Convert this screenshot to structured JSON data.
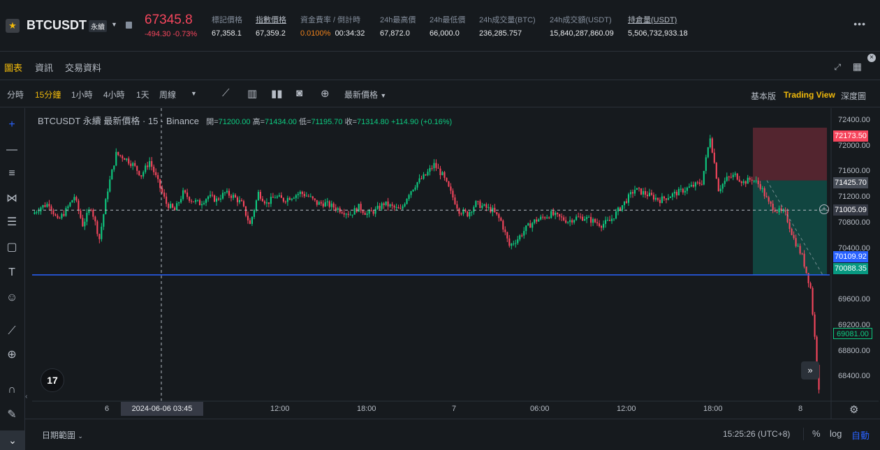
{
  "ticker": {
    "symbol": "BTCUSDT",
    "contract_type": "永續",
    "last_price": "67345.8",
    "change": "-494.30 -0.73%",
    "stats": [
      {
        "label": "標記價格",
        "value": "67,358.1",
        "underline": false
      },
      {
        "label": "指數價格",
        "value": "67,359.2",
        "underline": true
      },
      {
        "label": "24h最高價",
        "value": "67,872.0",
        "underline": false
      },
      {
        "label": "24h最低價",
        "value": "66,000.0",
        "underline": false
      },
      {
        "label": "24h成交量(BTC)",
        "value": "236,285.757",
        "underline": false
      },
      {
        "label": "24h成交額(USDT)",
        "value": "15,840,287,860.09",
        "underline": false
      },
      {
        "label": "持倉量(USDT)",
        "value": "5,506,732,933.18",
        "underline": true
      }
    ],
    "funding": {
      "label": "資金費率 / 倒計時",
      "rate": "0.0100%",
      "countdown": "00:34:32"
    },
    "colors": {
      "down": "#f6465d",
      "up": "#0ecb81",
      "accent": "#f0b90b"
    }
  },
  "tabs": [
    {
      "label": "圖表",
      "active": true
    },
    {
      "label": "資訊",
      "active": false
    },
    {
      "label": "交易資料",
      "active": false
    }
  ],
  "toolbar": {
    "timeframes": [
      {
        "label": "分時",
        "active": false
      },
      {
        "label": "15分鐘",
        "active": true
      },
      {
        "label": "1小時",
        "active": false
      },
      {
        "label": "4小時",
        "active": false
      },
      {
        "label": "1天",
        "active": false
      },
      {
        "label": "周線",
        "active": false
      }
    ],
    "price_type": "最新價格",
    "views": [
      {
        "label": "基本版",
        "active": false
      },
      {
        "label": "Trading View",
        "active": true
      },
      {
        "label": "深度圖",
        "active": false
      }
    ],
    "icons": [
      "indicator-icon",
      "bar-chart-icon",
      "candle-style-icon",
      "camera-icon",
      "add-icon"
    ]
  },
  "left_tools": [
    "crosshair-icon",
    "trendline-icon",
    "fib-icon",
    "pattern-icon",
    "ruler-lines-icon",
    "rectangle-icon",
    "text-icon",
    "emoji-icon",
    "measure-icon",
    "zoom-icon",
    "magnet-icon",
    "pencil-lock-icon"
  ],
  "chart": {
    "legend_title": "BTCUSDT 永續 最新價格 · 15 · Binance",
    "ohlc": {
      "open_label": "開",
      "open": "71200.00",
      "high_label": "高",
      "high": "71434.00",
      "low_label": "低",
      "low": "71195.70",
      "close_label": "收",
      "close": "71314.80",
      "change": "+114.90 (+0.16%)"
    },
    "crosshair_time": "2024-06-06   03:45",
    "time_axis": [
      "6",
      "12:00",
      "18:00",
      "7",
      "06:00",
      "12:00",
      "18:00",
      "8"
    ],
    "price_axis": [
      "72400.00",
      "72000.00",
      "71600.00",
      "71200.00",
      "70800.00",
      "70400.00",
      "69600.00",
      "69200.00",
      "68800.00",
      "68400.00"
    ],
    "price_tags": [
      {
        "label": "72173.50",
        "color": "#f6465d"
      },
      {
        "label": "71425.70",
        "color": "#363a45"
      },
      {
        "label": "71005.09",
        "color": "#363a45"
      },
      {
        "label": "70109.92",
        "color": "#2962ff"
      },
      {
        "label": "70088.35",
        "color": "#089981"
      },
      {
        "label": "69081.00",
        "color": "#161a1e"
      }
    ],
    "horizontal_line_price": "70088.35",
    "long_position": {
      "entry": "71425.70",
      "stop": "72173.50",
      "target": "70088.35"
    }
  },
  "chart_data": {
    "type": "candlestick",
    "title": "BTCUSDT 永續 最新價格 · 15 · Binance",
    "ylim": [
      68300,
      72450
    ],
    "x_ticks": [
      "6",
      "12:00",
      "18:00",
      "7",
      "06:00",
      "12:00",
      "18:00",
      "8"
    ],
    "close_trace": [
      70950,
      71050,
      71100,
      70850,
      71000,
      71200,
      70800,
      71050,
      70600,
      71300,
      71800,
      71750,
      71650,
      71500,
      71700,
      71400,
      71100,
      71000,
      71250,
      71150,
      71100,
      71200,
      71150,
      71250,
      71200,
      71100,
      70800,
      71250,
      71100,
      71200,
      71150,
      71200,
      71250,
      71200,
      71100,
      71100,
      71050,
      71000,
      70950,
      71050,
      70950,
      71000,
      71100,
      71050,
      71000,
      71250,
      71400,
      71500,
      71650,
      71500,
      71250,
      71000,
      70950,
      71100,
      71050,
      71000,
      70850,
      70500,
      70600,
      70750,
      70850,
      70900,
      70950,
      70900,
      70850,
      70900,
      70900,
      70850,
      70800,
      70850,
      71000,
      71150,
      71300,
      71250,
      71200,
      71150,
      71200,
      71250,
      71300,
      71350,
      71400,
      72050,
      71300,
      71450,
      71500,
      71400,
      71450,
      71350,
      71100,
      71000,
      70950,
      70600,
      70350,
      69900,
      68500
    ]
  },
  "footer": {
    "date_range": "日期範圍",
    "clock": "15:25:26 (UTC+8)",
    "percent": "%",
    "log": "log",
    "auto": "自動"
  }
}
